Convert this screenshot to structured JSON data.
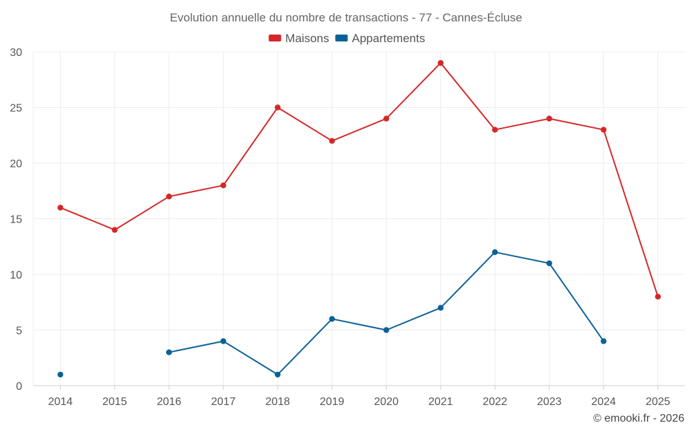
{
  "chart_data": {
    "type": "line",
    "title": "Evolution annuelle du nombre de transactions - 77 - Cannes-Écluse",
    "categories": [
      "2014",
      "2015",
      "2016",
      "2017",
      "2018",
      "2019",
      "2020",
      "2021",
      "2022",
      "2023",
      "2024",
      "2025"
    ],
    "series": [
      {
        "name": "Maisons",
        "color": "#d62728",
        "values": [
          16,
          14,
          17,
          18,
          25,
          22,
          24,
          29,
          23,
          24,
          23,
          8
        ]
      },
      {
        "name": "Appartements",
        "color": "#0b6196",
        "values": [
          1,
          null,
          3,
          4,
          1,
          6,
          5,
          7,
          12,
          11,
          4,
          null
        ]
      }
    ],
    "xlabel": "",
    "ylabel": "",
    "ylim": [
      0,
      30
    ],
    "yticks": [
      0,
      5,
      10,
      15,
      20,
      25,
      30
    ],
    "grid": true,
    "legend": "top-center"
  },
  "credit": "© emooki.fr - 2026"
}
